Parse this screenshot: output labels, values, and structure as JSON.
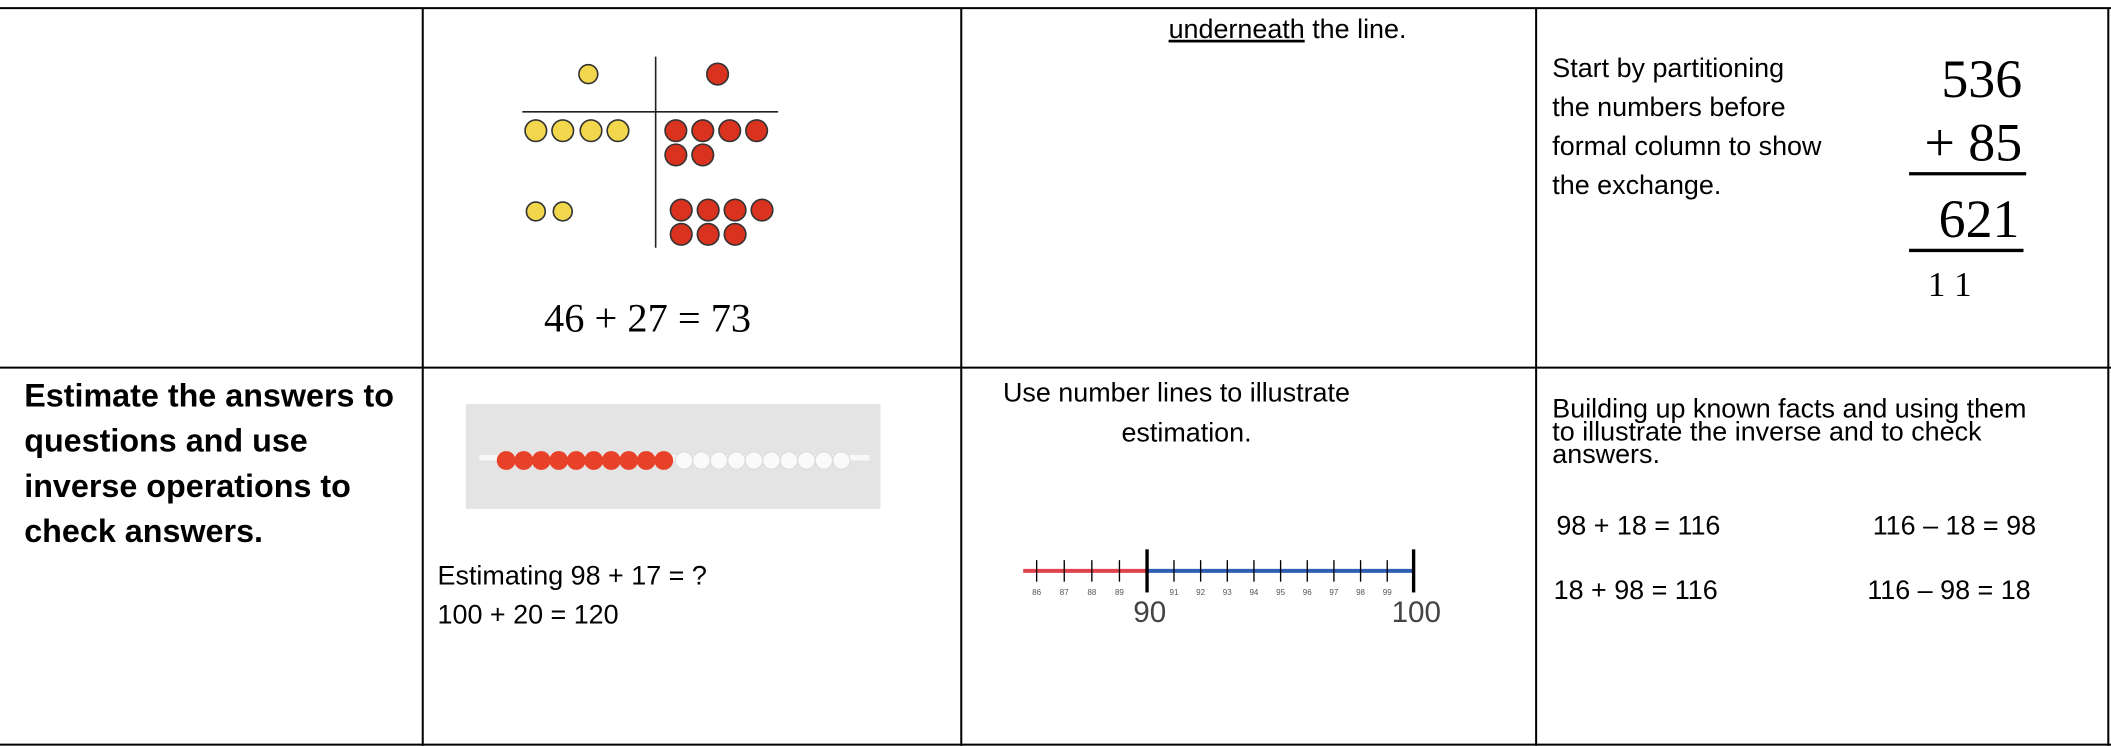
{
  "row1": {
    "counters_equation": "46 + 27 = 73",
    "method_note": {
      "underlined": "underneath",
      "rest": " the line."
    },
    "column_note": [
      "Start by partitioning",
      "the numbers before",
      "formal column to show",
      "the exchange."
    ],
    "column_sum": {
      "top": "536",
      "second": "+ 85",
      "answer": "621",
      "carry": "1 1"
    }
  },
  "row2": {
    "objective": [
      "Estimate the answers to",
      "questions and use",
      "inverse operations to",
      "check answers."
    ],
    "estimating": [
      "Estimating 98 + 17 = ?",
      "100 + 20 = 120"
    ],
    "number_line_note": [
      "Use number lines to illustrate",
      "estimation."
    ],
    "number_line": {
      "small_labels": [
        "86",
        "87",
        "88",
        "89",
        "91",
        "92",
        "93",
        "94",
        "95",
        "96",
        "97",
        "98",
        "99"
      ],
      "major_labels": [
        "90",
        "100"
      ]
    },
    "inverse_note": [
      "Building up known facts and using them",
      "to illustrate the inverse and to check",
      "answers."
    ],
    "facts": [
      [
        "98 + 18 =  116",
        "116 – 18 = 98"
      ],
      [
        "18 + 98 = 116",
        "116 – 98 = 18"
      ]
    ]
  }
}
